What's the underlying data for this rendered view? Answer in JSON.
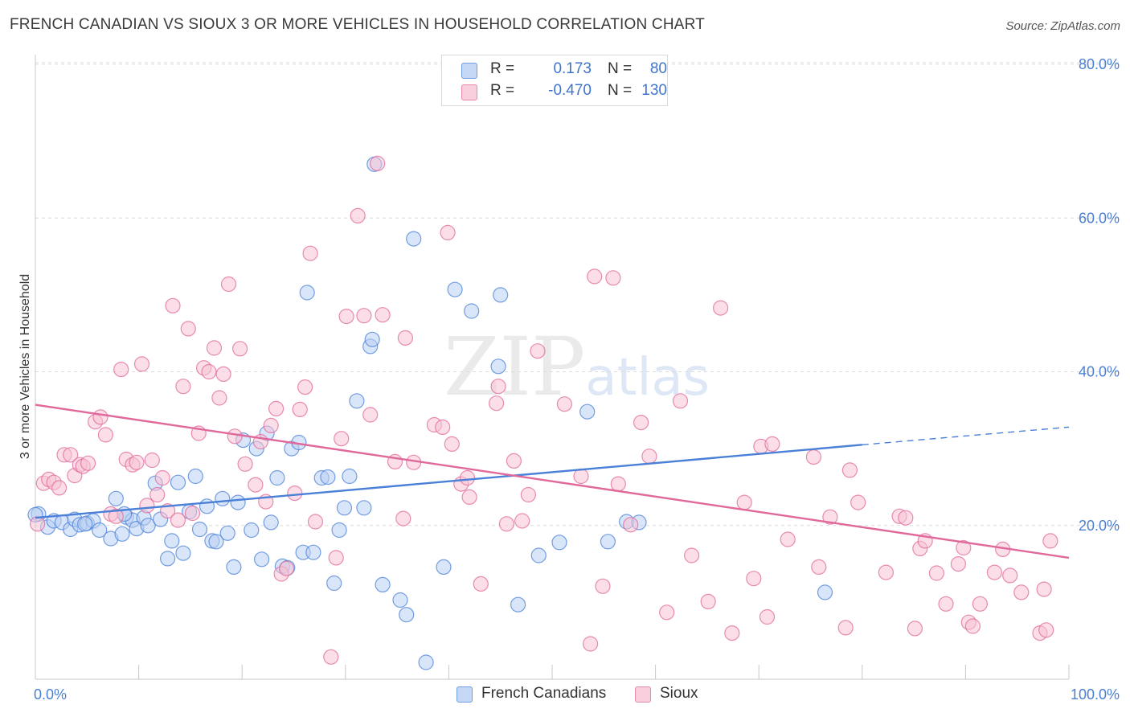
{
  "header": {
    "title": "FRENCH CANADIAN VS SIOUX 3 OR MORE VEHICLES IN HOUSEHOLD CORRELATION CHART",
    "source": "Source: ZipAtlas.com"
  },
  "watermark": {
    "zip": "ZIP",
    "atlas": "atlas"
  },
  "legend": {
    "rows": [
      {
        "r_label": "R =",
        "r_value": "0.173",
        "n_label": "N =",
        "n_value": "80",
        "color": "#8fb4ea"
      },
      {
        "r_label": "R =",
        "r_value": "-0.470",
        "n_label": "N =",
        "n_value": "130",
        "color": "#f3a3bd"
      }
    ]
  },
  "bottom_legend": [
    {
      "label": "French Canadians",
      "color": "#8fb4ea"
    },
    {
      "label": "Sioux",
      "color": "#f3a3bd"
    }
  ],
  "chart_data": {
    "type": "scatter",
    "title": "FRENCH CANADIAN VS SIOUX 3 OR MORE VEHICLES IN HOUSEHOLD CORRELATION CHART",
    "xlabel": "",
    "ylabel": "3 or more Vehicles in Household",
    "xlim": [
      0,
      100
    ],
    "ylim": [
      0,
      80
    ],
    "x_tick_labels": [
      "0.0%",
      "100.0%"
    ],
    "y_ticks": [
      20,
      40,
      60,
      80
    ],
    "y_tick_labels": [
      "20.0%",
      "40.0%",
      "60.0%",
      "80.0%"
    ],
    "grid": true,
    "legend_position": "top-center",
    "series": [
      {
        "name": "French Canadians",
        "color": "#4a80d8",
        "fill": "#b9d0f3",
        "trend": {
          "x0": 0,
          "y0": 21.0,
          "x1": 80,
          "y1": 30.5,
          "dashed_to_x": 100,
          "dashed_to_y": 32.8
        },
        "points": [
          [
            0.3,
            21.5
          ],
          [
            1.2,
            19.8
          ],
          [
            1.8,
            20.6
          ],
          [
            2.6,
            20.4
          ],
          [
            3.4,
            19.5
          ],
          [
            3.8,
            20.8
          ],
          [
            4.3,
            20.1
          ],
          [
            5.0,
            20.3
          ],
          [
            5.6,
            20.6
          ],
          [
            6.2,
            19.4
          ],
          [
            7.3,
            18.3
          ],
          [
            7.8,
            23.5
          ],
          [
            8.4,
            18.9
          ],
          [
            8.8,
            21.1
          ],
          [
            9.4,
            20.7
          ],
          [
            9.8,
            19.6
          ],
          [
            10.5,
            21.0
          ],
          [
            10.9,
            20.0
          ],
          [
            11.6,
            25.5
          ],
          [
            12.1,
            20.8
          ],
          [
            12.8,
            15.7
          ],
          [
            13.2,
            18.0
          ],
          [
            13.8,
            25.6
          ],
          [
            14.3,
            16.4
          ],
          [
            14.9,
            21.8
          ],
          [
            15.5,
            26.4
          ],
          [
            15.9,
            19.5
          ],
          [
            16.6,
            22.5
          ],
          [
            17.1,
            18.0
          ],
          [
            17.5,
            17.9
          ],
          [
            18.1,
            23.5
          ],
          [
            18.6,
            19.0
          ],
          [
            19.2,
            14.6
          ],
          [
            19.6,
            23.0
          ],
          [
            20.1,
            31.1
          ],
          [
            20.9,
            19.4
          ],
          [
            21.4,
            30.0
          ],
          [
            21.9,
            15.6
          ],
          [
            22.4,
            32.0
          ],
          [
            22.8,
            20.4
          ],
          [
            23.4,
            26.2
          ],
          [
            23.9,
            14.7
          ],
          [
            24.4,
            14.5
          ],
          [
            24.8,
            30.0
          ],
          [
            25.5,
            30.8
          ],
          [
            25.9,
            16.5
          ],
          [
            26.3,
            50.3
          ],
          [
            26.9,
            16.5
          ],
          [
            27.7,
            26.2
          ],
          [
            28.3,
            26.3
          ],
          [
            28.9,
            12.5
          ],
          [
            29.4,
            19.4
          ],
          [
            29.9,
            22.3
          ],
          [
            30.4,
            26.4
          ],
          [
            31.1,
            36.2
          ],
          [
            31.8,
            22.3
          ],
          [
            32.4,
            43.3
          ],
          [
            32.6,
            44.2
          ],
          [
            32.8,
            67.0
          ],
          [
            33.6,
            12.3
          ],
          [
            35.3,
            10.3
          ],
          [
            35.9,
            8.4
          ],
          [
            36.6,
            57.3
          ],
          [
            37.8,
            2.2
          ],
          [
            39.5,
            14.6
          ],
          [
            40.6,
            50.7
          ],
          [
            42.2,
            47.9
          ],
          [
            44.8,
            40.7
          ],
          [
            45.0,
            50.0
          ],
          [
            46.7,
            9.7
          ],
          [
            48.7,
            16.1
          ],
          [
            50.7,
            17.8
          ],
          [
            53.4,
            34.8
          ],
          [
            55.4,
            17.9
          ],
          [
            57.2,
            20.5
          ],
          [
            58.4,
            20.4
          ],
          [
            76.4,
            11.3
          ],
          [
            0.0,
            21.4
          ],
          [
            8.6,
            21.5
          ],
          [
            4.8,
            20.2
          ]
        ]
      },
      {
        "name": "Sioux",
        "color": "#e0689a",
        "fill": "#f7c3d4",
        "trend": {
          "x0": 0,
          "y0": 35.7,
          "x1": 100,
          "y1": 15.8
        },
        "points": [
          [
            0.2,
            20.2
          ],
          [
            0.8,
            25.5
          ],
          [
            1.3,
            26.0
          ],
          [
            1.8,
            25.6
          ],
          [
            2.3,
            24.9
          ],
          [
            2.8,
            29.2
          ],
          [
            3.4,
            29.2
          ],
          [
            3.8,
            26.5
          ],
          [
            4.3,
            27.9
          ],
          [
            4.6,
            27.7
          ],
          [
            5.1,
            28.1
          ],
          [
            5.8,
            33.5
          ],
          [
            6.3,
            34.1
          ],
          [
            6.8,
            31.8
          ],
          [
            7.3,
            21.5
          ],
          [
            7.8,
            21.2
          ],
          [
            8.3,
            40.3
          ],
          [
            8.8,
            28.6
          ],
          [
            9.4,
            27.9
          ],
          [
            9.8,
            28.2
          ],
          [
            10.3,
            41.0
          ],
          [
            10.8,
            22.6
          ],
          [
            11.3,
            28.5
          ],
          [
            11.8,
            24.0
          ],
          [
            12.3,
            26.2
          ],
          [
            12.8,
            21.9
          ],
          [
            13.3,
            48.6
          ],
          [
            13.8,
            20.7
          ],
          [
            14.3,
            38.1
          ],
          [
            14.8,
            45.6
          ],
          [
            15.2,
            21.6
          ],
          [
            15.8,
            32.0
          ],
          [
            16.3,
            40.5
          ],
          [
            16.8,
            40.0
          ],
          [
            17.3,
            43.1
          ],
          [
            17.8,
            36.6
          ],
          [
            18.2,
            39.7
          ],
          [
            18.7,
            51.4
          ],
          [
            19.3,
            31.6
          ],
          [
            19.8,
            43.0
          ],
          [
            20.3,
            28.0
          ],
          [
            21.3,
            25.3
          ],
          [
            21.8,
            30.9
          ],
          [
            22.3,
            23.1
          ],
          [
            22.8,
            33.0
          ],
          [
            23.3,
            35.2
          ],
          [
            23.8,
            13.7
          ],
          [
            24.3,
            14.4
          ],
          [
            25.1,
            24.2
          ],
          [
            25.6,
            35.1
          ],
          [
            26.1,
            38.0
          ],
          [
            26.6,
            55.4
          ],
          [
            27.1,
            20.5
          ],
          [
            28.6,
            2.9
          ],
          [
            29.1,
            15.8
          ],
          [
            29.6,
            31.3
          ],
          [
            30.1,
            47.2
          ],
          [
            31.2,
            60.3
          ],
          [
            31.8,
            47.3
          ],
          [
            32.4,
            34.4
          ],
          [
            33.1,
            67.1
          ],
          [
            33.6,
            47.4
          ],
          [
            34.8,
            28.3
          ],
          [
            35.6,
            20.9
          ],
          [
            35.8,
            44.4
          ],
          [
            36.6,
            28.2
          ],
          [
            38.6,
            33.1
          ],
          [
            39.4,
            32.8
          ],
          [
            39.9,
            58.1
          ],
          [
            40.3,
            30.6
          ],
          [
            41.2,
            25.4
          ],
          [
            41.8,
            26.2
          ],
          [
            42.0,
            23.7
          ],
          [
            43.1,
            12.4
          ],
          [
            44.6,
            35.9
          ],
          [
            44.8,
            38.1
          ],
          [
            45.6,
            20.2
          ],
          [
            46.3,
            28.4
          ],
          [
            47.1,
            20.6
          ],
          [
            47.7,
            24.0
          ],
          [
            48.6,
            42.7
          ],
          [
            51.2,
            35.8
          ],
          [
            52.8,
            26.4
          ],
          [
            53.7,
            4.6
          ],
          [
            54.1,
            52.4
          ],
          [
            54.9,
            12.1
          ],
          [
            55.9,
            52.2
          ],
          [
            56.4,
            25.4
          ],
          [
            57.6,
            20.1
          ],
          [
            58.6,
            33.4
          ],
          [
            59.4,
            29.0
          ],
          [
            61.1,
            8.7
          ],
          [
            62.4,
            36.2
          ],
          [
            63.5,
            16.1
          ],
          [
            65.1,
            10.1
          ],
          [
            66.3,
            48.3
          ],
          [
            67.4,
            6.0
          ],
          [
            68.6,
            23.0
          ],
          [
            69.5,
            13.1
          ],
          [
            70.2,
            30.3
          ],
          [
            70.8,
            8.1
          ],
          [
            71.3,
            30.6
          ],
          [
            72.8,
            18.2
          ],
          [
            75.3,
            28.9
          ],
          [
            75.8,
            14.6
          ],
          [
            76.9,
            21.1
          ],
          [
            78.4,
            6.7
          ],
          [
            78.8,
            27.2
          ],
          [
            79.6,
            23.0
          ],
          [
            82.3,
            13.9
          ],
          [
            83.6,
            21.2
          ],
          [
            84.2,
            21.0
          ],
          [
            85.1,
            6.6
          ],
          [
            85.6,
            17.0
          ],
          [
            86.1,
            18.0
          ],
          [
            87.2,
            13.8
          ],
          [
            88.1,
            9.8
          ],
          [
            89.3,
            15.0
          ],
          [
            89.8,
            17.1
          ],
          [
            90.3,
            7.4
          ],
          [
            90.7,
            6.9
          ],
          [
            91.4,
            9.8
          ],
          [
            92.8,
            13.9
          ],
          [
            93.6,
            16.9
          ],
          [
            94.3,
            13.5
          ],
          [
            95.4,
            11.3
          ],
          [
            97.2,
            6.0
          ],
          [
            97.8,
            6.4
          ],
          [
            97.6,
            11.7
          ],
          [
            98.2,
            18.0
          ]
        ]
      }
    ]
  }
}
